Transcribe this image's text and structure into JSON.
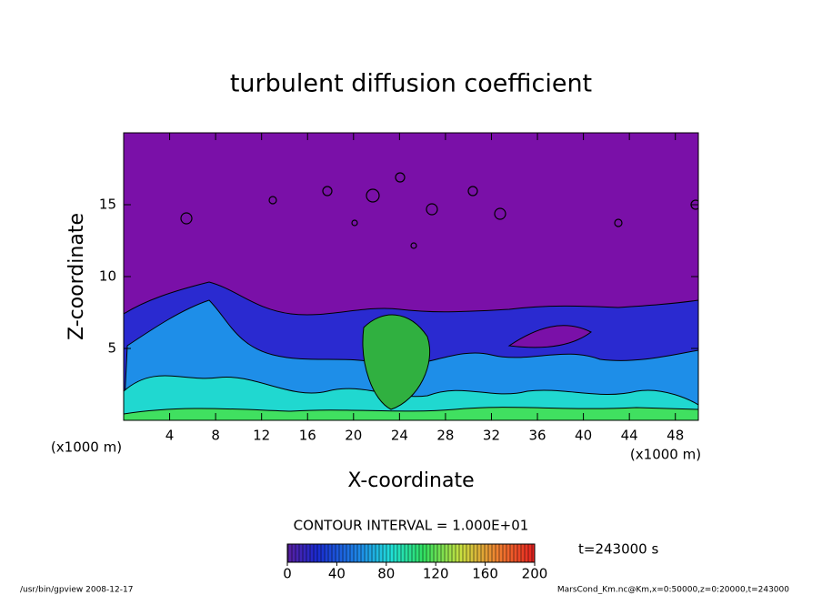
{
  "chart_data": {
    "type": "contour",
    "title": "turbulent diffusion coefficient",
    "x_label": "X-coordinate",
    "y_label": "Z-coordinate",
    "x_unit": "(x1000 m)",
    "y_unit": "(x1000 m)",
    "xlim": [
      0,
      50
    ],
    "xticks": [
      4,
      8,
      12,
      16,
      20,
      24,
      28,
      32,
      36,
      40,
      44,
      48
    ],
    "ylim": [
      0,
      20
    ],
    "yticks": [
      5,
      10,
      15
    ],
    "contour_interval": "CONTOUR INTERVAL = 1.000E+01",
    "time_label": "t=243000 s",
    "colorbar": {
      "lim": [
        0,
        200
      ],
      "ticks": [
        0,
        40,
        80,
        120,
        160,
        200
      ]
    },
    "footer_left": "/usr/bin/gpview  2008-12-17",
    "footer_right": "MarsCond_Km.nc@Km,x=0:50000,z=0:20000,t=243000"
  }
}
